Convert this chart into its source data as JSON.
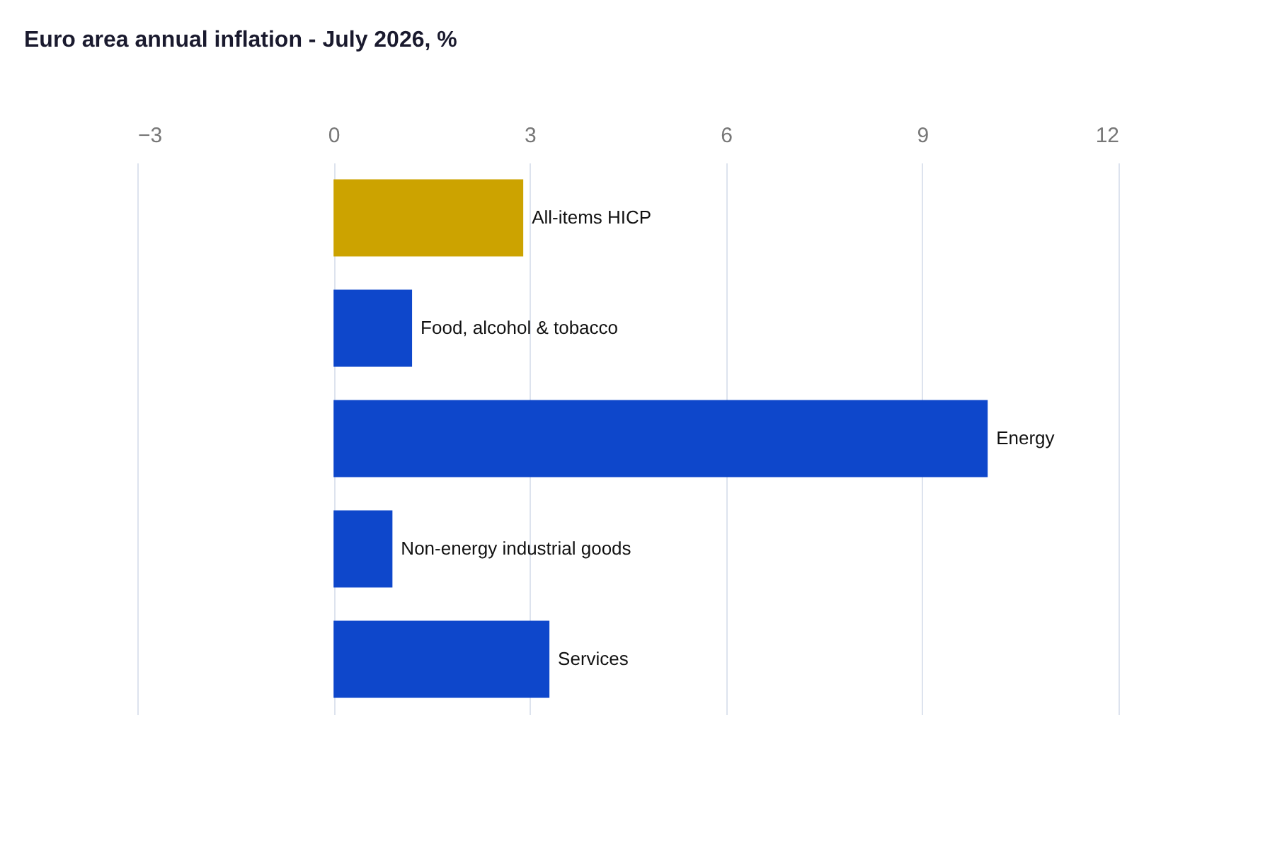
{
  "chart_data": {
    "type": "bar",
    "orientation": "horizontal",
    "title": "Euro area annual inflation - July 2026, %",
    "categories": [
      "All-items HICP",
      "Food, alcohol & tobacco",
      "Energy",
      "Non-energy industrial goods",
      "Services"
    ],
    "values": [
      2.9,
      1.2,
      10.0,
      0.9,
      3.3
    ],
    "colors": [
      "#cca300",
      "#0e47cb",
      "#0e47cb",
      "#0e47cb",
      "#0e47cb"
    ],
    "xlim": [
      -3,
      12
    ],
    "xticks": [
      -3,
      0,
      3,
      6,
      9,
      12
    ],
    "grid": "x"
  }
}
